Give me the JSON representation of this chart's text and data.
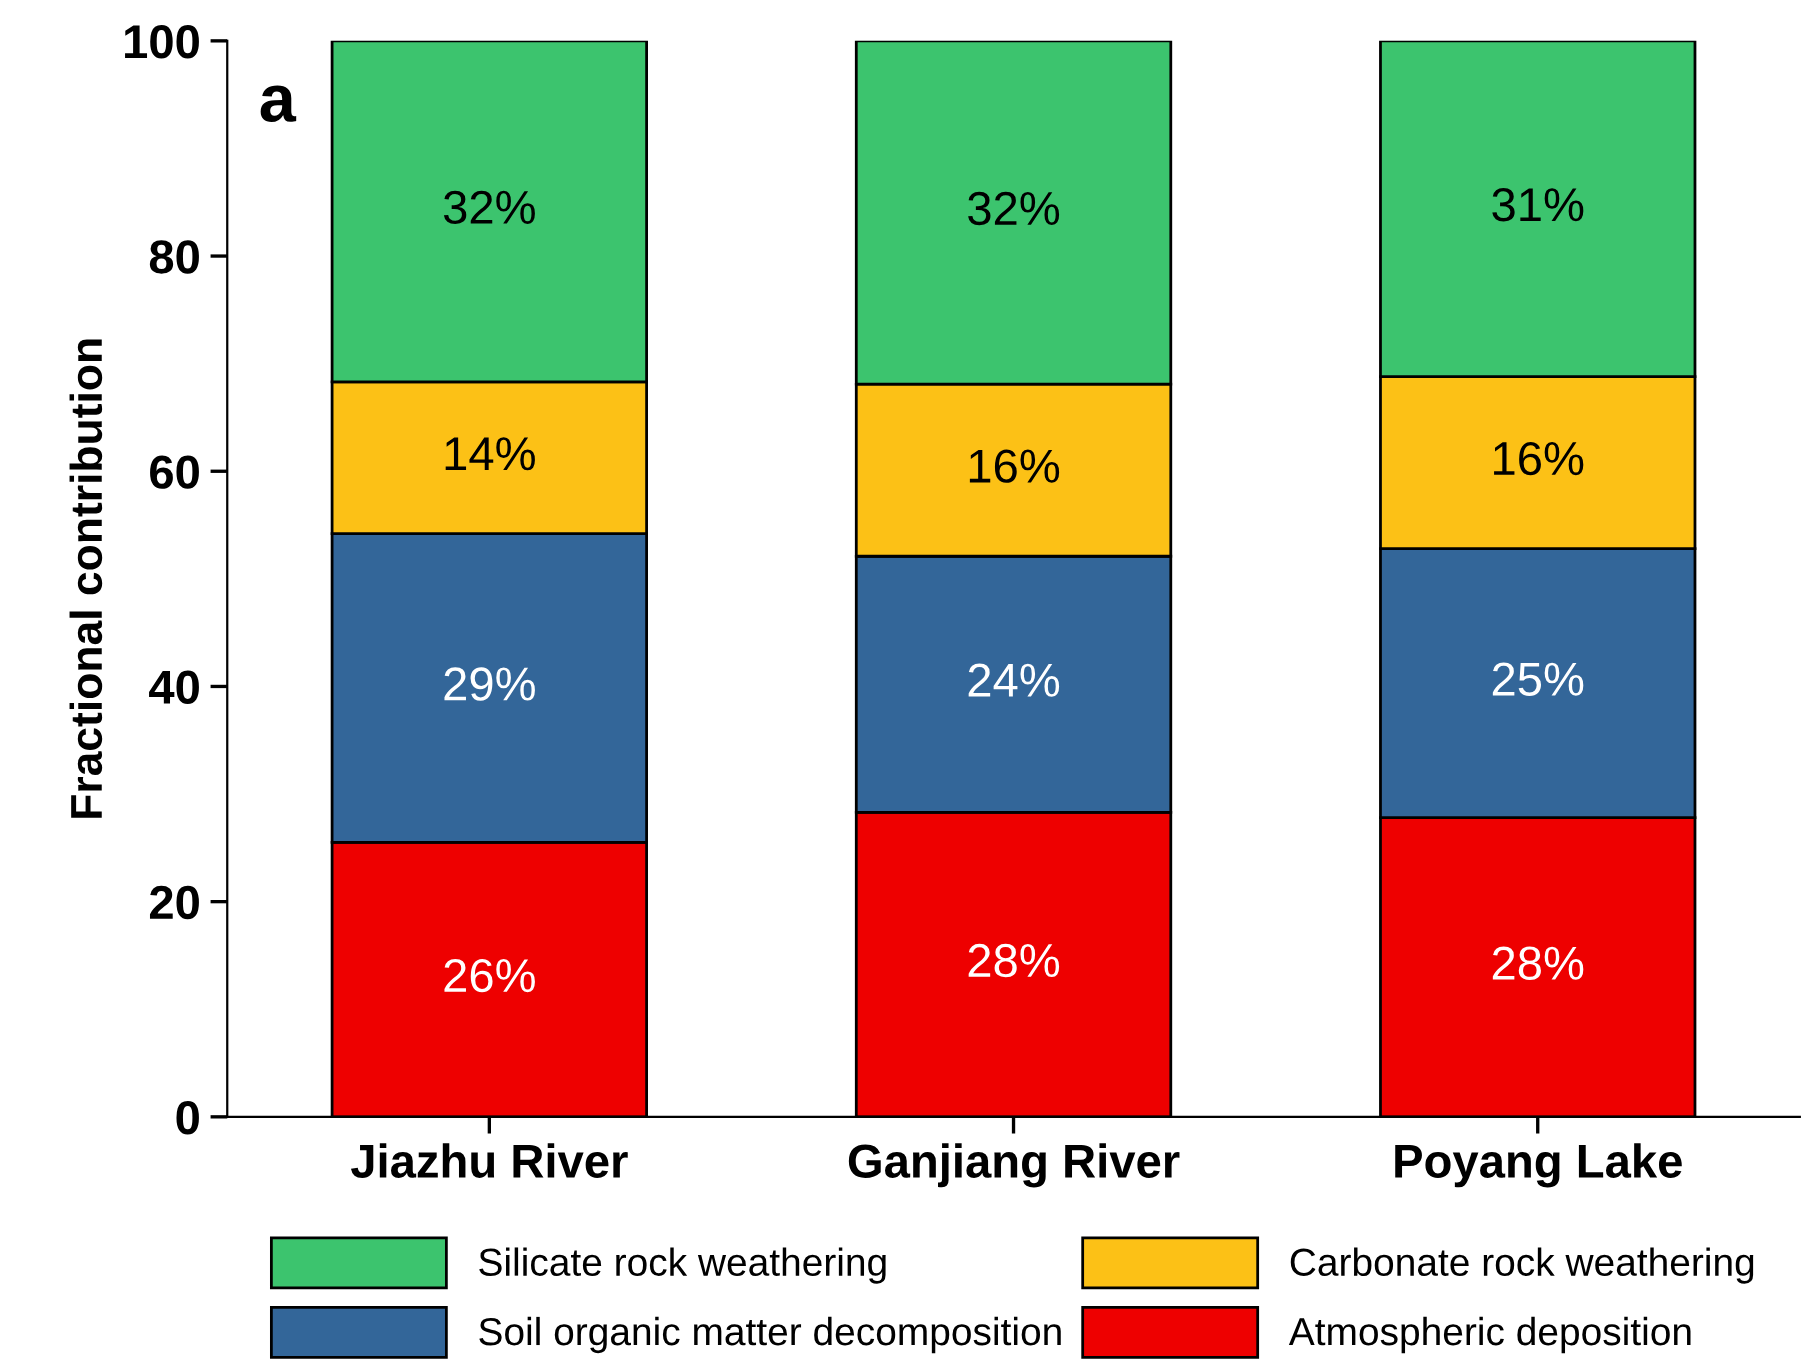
{
  "chart_data": {
    "type": "bar",
    "stacked": true,
    "ylabel": "Fractional contribution",
    "categories": [
      "Jiazhu River",
      "Ganjiang River",
      "Poyang Lake"
    ],
    "series": [
      {
        "name": "Atmospheric deposition",
        "color": "#ee0000",
        "values": [
          25.5,
          28.3,
          27.8
        ],
        "value_labels": [
          "26%",
          "28%",
          "28%"
        ]
      },
      {
        "name": "Soil organic matter decomposition",
        "color": "#336699",
        "values": [
          28.7,
          23.8,
          25.0
        ],
        "value_labels": [
          "29%",
          "24%",
          "25%"
        ]
      },
      {
        "name": "Carbonate rock weathering",
        "color": "#fcc116",
        "values": [
          14.1,
          16.0,
          16.0
        ],
        "value_labels": [
          "14%",
          "16%",
          "16%"
        ]
      },
      {
        "name": "Silicate rock weathering",
        "color": "#3cc46e",
        "values": [
          31.7,
          31.9,
          31.2
        ],
        "value_labels": [
          "32%",
          "32%",
          "31%"
        ]
      }
    ],
    "ylim": [
      0,
      100
    ],
    "yticks": [
      0,
      20,
      40,
      60,
      80,
      100
    ],
    "annotations": [
      "a"
    ],
    "grid": false,
    "legend": "bottom"
  }
}
